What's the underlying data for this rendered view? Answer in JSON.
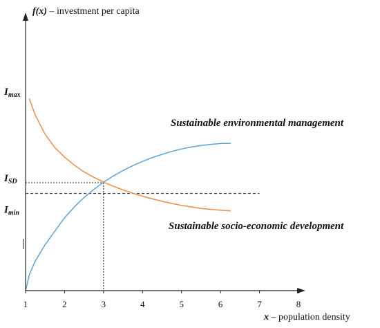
{
  "chart_data": {
    "type": "line",
    "ylabel_var": "f(x)",
    "ylabel_text": " – investment per capita",
    "xlabel_var": "x",
    "xlabel_text": " – population density",
    "xlim": [
      1,
      8
    ],
    "ylim": [
      0,
      1
    ],
    "x_ticks": [
      "1",
      "2",
      "3",
      "4",
      "5",
      "6",
      "7",
      "8"
    ],
    "y_levels": [
      {
        "name": "I_max",
        "main": "I",
        "sub": "max",
        "value": 0.72
      },
      {
        "name": "I_SD",
        "main": "I",
        "sub": "SD",
        "value": 0.4
      },
      {
        "name": "I_min",
        "main": "I",
        "sub": "min",
        "value": 0.36
      }
    ],
    "dashed_lines": {
      "horizontal": [
        0.4,
        0.36
      ],
      "vertical": [
        3
      ]
    },
    "series": [
      {
        "name": "Sustainable environmental management",
        "color": "#5ba3d9",
        "x": [
          1.0,
          1.1,
          1.25,
          1.5,
          1.75,
          2.0,
          2.25,
          2.5,
          2.75,
          3.0,
          3.25,
          3.5,
          3.75,
          4.0,
          4.25,
          4.5,
          4.75,
          5.0,
          5.25,
          5.5,
          5.75,
          6.0,
          6.25
        ],
        "y": [
          0.0,
          0.06,
          0.11,
          0.17,
          0.22,
          0.27,
          0.31,
          0.345,
          0.375,
          0.402,
          0.425,
          0.445,
          0.463,
          0.479,
          0.493,
          0.505,
          0.516,
          0.525,
          0.532,
          0.538,
          0.542,
          0.545,
          0.546
        ]
      },
      {
        "name": "Sustainable socio-economic development",
        "color": "#ef8c44",
        "x": [
          1.1,
          1.25,
          1.5,
          1.75,
          2.0,
          2.25,
          2.5,
          2.75,
          3.0,
          3.25,
          3.5,
          3.75,
          4.0,
          4.25,
          4.5,
          4.75,
          5.0,
          5.25,
          5.5,
          5.75,
          6.0,
          6.25
        ],
        "y": [
          0.71,
          0.65,
          0.58,
          0.53,
          0.495,
          0.465,
          0.44,
          0.42,
          0.402,
          0.387,
          0.373,
          0.361,
          0.35,
          0.34,
          0.331,
          0.323,
          0.316,
          0.31,
          0.305,
          0.301,
          0.298,
          0.296
        ]
      }
    ]
  }
}
